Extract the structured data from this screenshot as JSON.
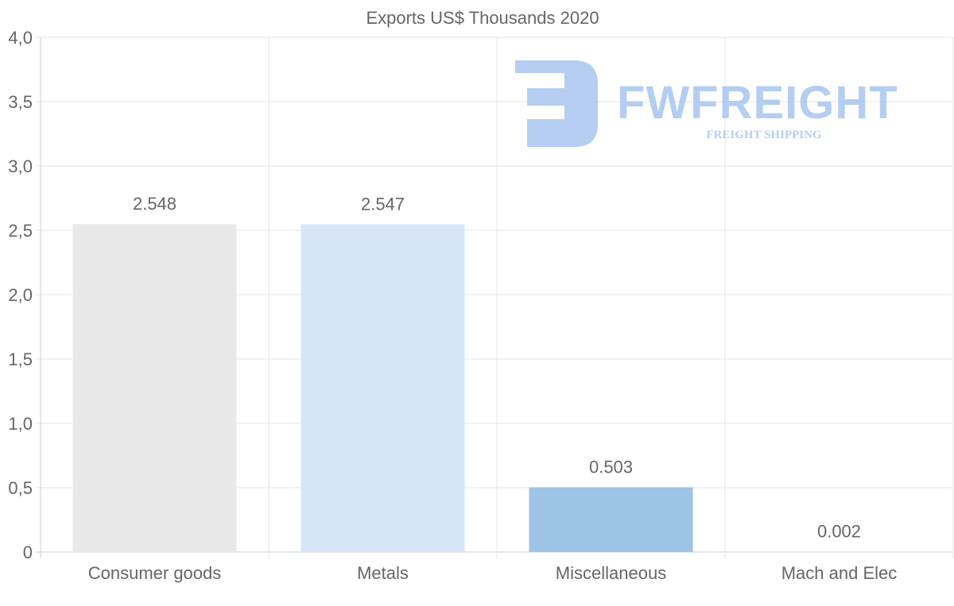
{
  "chart_data": {
    "type": "bar",
    "title": "Exports US$ Thousands 2020",
    "categories": [
      "Consumer goods",
      "Metals",
      "Miscellaneous",
      "Mach and Elec"
    ],
    "values": [
      2.548,
      2.547,
      0.503,
      0.002
    ],
    "value_labels": [
      "2.548",
      "2.547",
      "0.503",
      "0.002"
    ],
    "colors": [
      "#e8e8e8",
      "#d6e6f8",
      "#9dc3e6",
      "#c5d9ef"
    ],
    "ylim": [
      0,
      4.0
    ],
    "yticks": [
      0,
      0.5,
      1.0,
      1.5,
      2.0,
      2.5,
      3.0,
      3.5,
      4.0
    ],
    "ytick_labels": [
      "0",
      "0,5",
      "1,0",
      "1,5",
      "2,0",
      "2,5",
      "3,0",
      "3,5",
      "4,0"
    ],
    "xlabel": "",
    "ylabel": "",
    "grid": true,
    "legend": "none"
  },
  "watermark": {
    "brand": "FWFREIGHT",
    "tagline": "FREIGHT SHIPPING",
    "color": "#a8c6f0"
  }
}
